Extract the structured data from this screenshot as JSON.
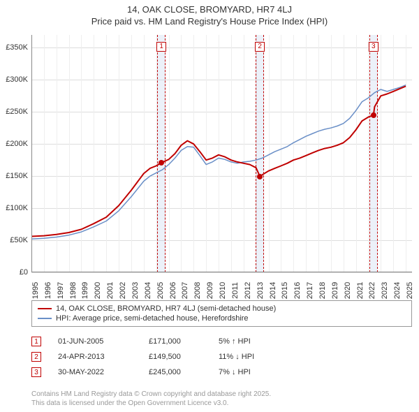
{
  "title": "14, OAK CLOSE, BROMYARD, HR7 4LJ",
  "subtitle": "Price paid vs. HM Land Registry's House Price Index (HPI)",
  "chart": {
    "type": "line",
    "background_color": "#ffffff",
    "grid_color": "#dddddd",
    "text_color": "#333333",
    "band_fill": "rgba(180,200,230,0.25)",
    "band_border": "#c00000",
    "title_fontsize": 13,
    "axis_fontsize": 11,
    "x_min": 1995,
    "x_max": 2025.5,
    "y_min": 0,
    "y_max": 370000,
    "y_ticks": [
      {
        "v": 0,
        "label": "£0"
      },
      {
        "v": 50000,
        "label": "£50K"
      },
      {
        "v": 100000,
        "label": "£100K"
      },
      {
        "v": 150000,
        "label": "£150K"
      },
      {
        "v": 200000,
        "label": "£200K"
      },
      {
        "v": 250000,
        "label": "£250K"
      },
      {
        "v": 300000,
        "label": "£300K"
      },
      {
        "v": 350000,
        "label": "£350K"
      }
    ],
    "x_ticks": [
      1995,
      1996,
      1997,
      1998,
      1999,
      2000,
      2001,
      2002,
      2003,
      2004,
      2005,
      2006,
      2007,
      2008,
      2009,
      2010,
      2011,
      2012,
      2013,
      2014,
      2015,
      2016,
      2017,
      2018,
      2019,
      2020,
      2021,
      2022,
      2023,
      2024,
      2025
    ],
    "series": [
      {
        "name": "14, OAK CLOSE, BROMYARD, HR7 4LJ (semi-detached house)",
        "color": "#c00000",
        "width": 2,
        "points": [
          [
            1995,
            56000
          ],
          [
            1996,
            57000
          ],
          [
            1997,
            59000
          ],
          [
            1998,
            62000
          ],
          [
            1999,
            67000
          ],
          [
            2000,
            76000
          ],
          [
            2001,
            86000
          ],
          [
            2002,
            104000
          ],
          [
            2003,
            128000
          ],
          [
            2004,
            154000
          ],
          [
            2004.5,
            162000
          ],
          [
            2005,
            166000
          ],
          [
            2005.42,
            171000
          ],
          [
            2006,
            176000
          ],
          [
            2006.5,
            185000
          ],
          [
            2007,
            198000
          ],
          [
            2007.5,
            205000
          ],
          [
            2008,
            200000
          ],
          [
            2008.5,
            188000
          ],
          [
            2009,
            175000
          ],
          [
            2009.5,
            178000
          ],
          [
            2010,
            183000
          ],
          [
            2010.5,
            180000
          ],
          [
            2011,
            175000
          ],
          [
            2011.5,
            172000
          ],
          [
            2012,
            170000
          ],
          [
            2012.5,
            168000
          ],
          [
            2013,
            163000
          ],
          [
            2013.31,
            149500
          ],
          [
            2013.5,
            152000
          ],
          [
            2014,
            158000
          ],
          [
            2014.5,
            162000
          ],
          [
            2015,
            166000
          ],
          [
            2015.5,
            170000
          ],
          [
            2016,
            175000
          ],
          [
            2016.5,
            178000
          ],
          [
            2017,
            182000
          ],
          [
            2017.5,
            186000
          ],
          [
            2018,
            190000
          ],
          [
            2018.5,
            193000
          ],
          [
            2019,
            195000
          ],
          [
            2019.5,
            198000
          ],
          [
            2020,
            202000
          ],
          [
            2020.5,
            210000
          ],
          [
            2021,
            222000
          ],
          [
            2021.5,
            236000
          ],
          [
            2022,
            242000
          ],
          [
            2022.41,
            245000
          ],
          [
            2022.5,
            258000
          ],
          [
            2023,
            275000
          ],
          [
            2023.5,
            278000
          ],
          [
            2024,
            282000
          ],
          [
            2024.5,
            286000
          ],
          [
            2025,
            290000
          ]
        ]
      },
      {
        "name": "HPI: Average price, semi-detached house, Herefordshire",
        "color": "#6a8fc7",
        "width": 1.5,
        "points": [
          [
            1995,
            52000
          ],
          [
            1996,
            53000
          ],
          [
            1997,
            55000
          ],
          [
            1998,
            58000
          ],
          [
            1999,
            63000
          ],
          [
            2000,
            71000
          ],
          [
            2001,
            80000
          ],
          [
            2002,
            96000
          ],
          [
            2003,
            118000
          ],
          [
            2004,
            142000
          ],
          [
            2004.5,
            150000
          ],
          [
            2005,
            155000
          ],
          [
            2005.5,
            160000
          ],
          [
            2006,
            168000
          ],
          [
            2006.5,
            178000
          ],
          [
            2007,
            190000
          ],
          [
            2007.5,
            196000
          ],
          [
            2008,
            195000
          ],
          [
            2008.5,
            182000
          ],
          [
            2009,
            168000
          ],
          [
            2009.5,
            172000
          ],
          [
            2010,
            178000
          ],
          [
            2010.5,
            176000
          ],
          [
            2011,
            172000
          ],
          [
            2011.5,
            170000
          ],
          [
            2012,
            172000
          ],
          [
            2012.5,
            173000
          ],
          [
            2013,
            175000
          ],
          [
            2013.5,
            178000
          ],
          [
            2014,
            183000
          ],
          [
            2014.5,
            188000
          ],
          [
            2015,
            192000
          ],
          [
            2015.5,
            196000
          ],
          [
            2016,
            202000
          ],
          [
            2016.5,
            207000
          ],
          [
            2017,
            212000
          ],
          [
            2017.5,
            216000
          ],
          [
            2018,
            220000
          ],
          [
            2018.5,
            223000
          ],
          [
            2019,
            225000
          ],
          [
            2019.5,
            228000
          ],
          [
            2020,
            232000
          ],
          [
            2020.5,
            240000
          ],
          [
            2021,
            252000
          ],
          [
            2021.5,
            266000
          ],
          [
            2022,
            272000
          ],
          [
            2022.5,
            280000
          ],
          [
            2023,
            285000
          ],
          [
            2023.5,
            282000
          ],
          [
            2024,
            285000
          ],
          [
            2024.5,
            288000
          ],
          [
            2025,
            292000
          ]
        ]
      }
    ],
    "markers": [
      {
        "n": 1,
        "x": 2005.42,
        "band_half": 0.35,
        "dot_x": 2005.42,
        "dot_y": 171000
      },
      {
        "n": 2,
        "x": 2013.31,
        "band_half": 0.35,
        "dot_x": 2013.31,
        "dot_y": 149500
      },
      {
        "n": 3,
        "x": 2022.41,
        "band_half": 0.35,
        "dot_x": 2022.41,
        "dot_y": 245000
      }
    ]
  },
  "legend": [
    {
      "color": "#c00000",
      "label": "14, OAK CLOSE, BROMYARD, HR7 4LJ (semi-detached house)"
    },
    {
      "color": "#6a8fc7",
      "label": "HPI: Average price, semi-detached house, Herefordshire"
    }
  ],
  "transactions": [
    {
      "n": "1",
      "date": "01-JUN-2005",
      "price": "£171,000",
      "diff": "5% ↑ HPI"
    },
    {
      "n": "2",
      "date": "24-APR-2013",
      "price": "£149,500",
      "diff": "11% ↓ HPI"
    },
    {
      "n": "3",
      "date": "30-MAY-2022",
      "price": "£245,000",
      "diff": "7% ↓ HPI"
    }
  ],
  "footer_line1": "Contains HM Land Registry data © Crown copyright and database right 2025.",
  "footer_line2": "This data is licensed under the Open Government Licence v3.0."
}
